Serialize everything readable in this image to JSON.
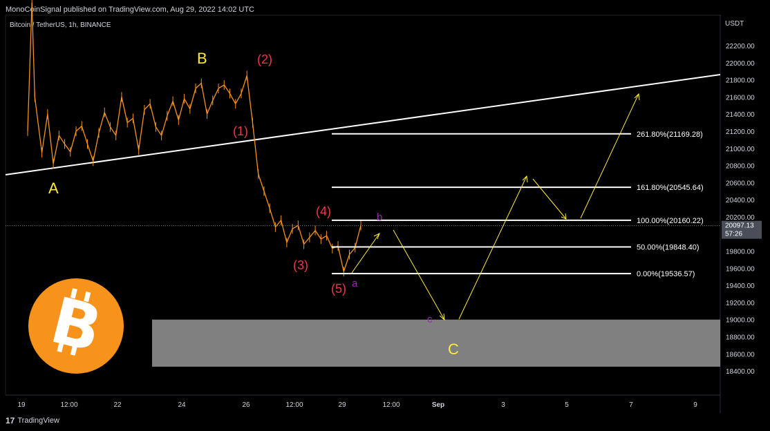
{
  "header": {
    "publisher_line": "MonoCoinSignal published on TradingView.com, Aug 29, 2022 14:02 UTC"
  },
  "symbol": {
    "label": "Bitcoin / TetherUS, 1h, BINANCE"
  },
  "footer": {
    "brand": "TradingView",
    "logo_text": "17"
  },
  "chart_data": {
    "type": "line",
    "series": [
      {
        "values": [
          [
            0,
            21200
          ],
          [
            0.3,
            22700
          ],
          [
            0.5,
            21600
          ],
          [
            1,
            20950
          ],
          [
            1.4,
            21400
          ],
          [
            1.8,
            20820
          ],
          [
            2.2,
            21150
          ],
          [
            2.6,
            21050
          ],
          [
            3,
            20960
          ],
          [
            3.4,
            21200
          ],
          [
            3.8,
            21260
          ],
          [
            4.2,
            21050
          ],
          [
            4.6,
            20850
          ],
          [
            5,
            21180
          ],
          [
            5.4,
            21420
          ],
          [
            5.8,
            21250
          ],
          [
            6.2,
            21150
          ],
          [
            6.6,
            21600
          ],
          [
            7,
            21300
          ],
          [
            7.4,
            21350
          ],
          [
            7.8,
            20980
          ],
          [
            8.2,
            21450
          ],
          [
            8.6,
            21520
          ],
          [
            9,
            21250
          ],
          [
            9.4,
            21150
          ],
          [
            9.8,
            21380
          ],
          [
            10.2,
            21550
          ],
          [
            10.6,
            21330
          ],
          [
            11,
            21580
          ],
          [
            11.4,
            21460
          ],
          [
            11.8,
            21700
          ],
          [
            12.2,
            21760
          ],
          [
            12.6,
            21400
          ],
          [
            13,
            21560
          ],
          [
            13.4,
            21700
          ],
          [
            13.8,
            21740
          ],
          [
            14.2,
            21640
          ],
          [
            14.6,
            21520
          ],
          [
            15,
            21640
          ],
          [
            15.4,
            21850
          ],
          [
            15.8,
            21300
          ],
          [
            16.2,
            20700
          ],
          [
            16.6,
            20500
          ],
          [
            17,
            20300
          ],
          [
            17.4,
            20080
          ],
          [
            17.8,
            20160
          ],
          [
            18.2,
            19900
          ],
          [
            18.6,
            20060
          ],
          [
            19,
            20100
          ],
          [
            19.4,
            19880
          ],
          [
            19.8,
            19960
          ],
          [
            20.2,
            20040
          ],
          [
            20.6,
            19940
          ],
          [
            21,
            19980
          ],
          [
            21.4,
            19830
          ],
          [
            21.8,
            19860
          ],
          [
            22.2,
            19560
          ],
          [
            22.6,
            19760
          ],
          [
            23,
            19840
          ],
          [
            23.4,
            20100
          ]
        ]
      }
    ],
    "candles_color": "#f7931a",
    "y_axis": {
      "label": "USDT",
      "ticks": [
        "22200.00",
        "22000.00",
        "21800.00",
        "21600.00",
        "21400.00",
        "21200.00",
        "21000.00",
        "20800.00",
        "20600.00",
        "20400.00",
        "20200.00",
        "20000.00",
        "19800.00",
        "19600.00",
        "19400.00",
        "19200.00",
        "19000.00",
        "18800.00",
        "18600.00",
        "18400.00"
      ],
      "ylim": [
        18320,
        22450
      ]
    },
    "x_axis": {
      "ticks": [
        "19",
        "12:00",
        "22",
        "24",
        "26",
        "12:00",
        "29",
        "12:00",
        "Sep",
        "3",
        "5",
        "7",
        "9"
      ]
    },
    "last_price": {
      "value": "20097.13",
      "countdown": "57:26"
    },
    "fib_levels": [
      {
        "label": "261.80%(21169.28)",
        "price": 21169.28
      },
      {
        "label": "161.80%(20545.64)",
        "price": 20545.64
      },
      {
        "label": "100.00%(20160.22)",
        "price": 20160.22
      },
      {
        "label": "50.00%(19848.40)",
        "price": 19848.4
      },
      {
        "label": "0.00%(19536.57)",
        "price": 19536.57
      }
    ],
    "wave_labels": [
      {
        "text": "A",
        "color": "#ffeb3b"
      },
      {
        "text": "B",
        "color": "#ffeb3b"
      },
      {
        "text": "C",
        "color": "#ffeb3b"
      },
      {
        "text": "(1)",
        "color": "#f23645"
      },
      {
        "text": "(2)",
        "color": "#f23645"
      },
      {
        "text": "(3)",
        "color": "#f23645"
      },
      {
        "text": "(4)",
        "color": "#f23645"
      },
      {
        "text": "(5)",
        "color": "#f23645"
      },
      {
        "text": "a",
        "color": "#9c27b0"
      },
      {
        "text": "b",
        "color": "#9c27b0"
      },
      {
        "text": "c",
        "color": "#9c27b0"
      }
    ],
    "target_zone": {
      "from": 18450,
      "to": 19000,
      "color": "#808080"
    },
    "projection_color": "#ffeb3b",
    "logo": "bitcoin-logo"
  }
}
